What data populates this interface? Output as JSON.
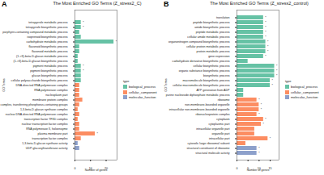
{
  "chart_data": [
    {
      "type": "bar",
      "orientation": "horizontal",
      "panel_label": "A",
      "title": "The Most Enriched GO Terms (Z_stress2_C)",
      "x_label": "Number of genes",
      "y_label": "GO Terms",
      "legend": "right",
      "legend_title": "type",
      "xlim": [
        0,
        27
      ],
      "xticks": [
        0,
        10,
        20
      ],
      "categories": [
        "tetrapyrrole metabolic process",
        "tetrapyrrole biosynthetic process",
        "porphyrin-containing compound metabolic process",
        "isoprenoid biosynthetic process",
        "carbohydrate metabolic process",
        "flavonoid biosynthetic process",
        "flavonoid metabolic process",
        "(1->3)-beta-D-glucan metabolic process",
        "(1->3)-beta-D-glucan biosynthetic process",
        "pigment metabolic process",
        "pigment biosynthetic process",
        "glucan biosynthetic process",
        "cellular polysaccharide biosynthetic process",
        "DNA-directed RNA polymerase complex",
        "RNA polymerase complex",
        "nucleoplasm part",
        "membrane protein complex",
        "transferase complex, transferring phosphorus-containing groups",
        "1,3-beta-D-glucan synthase complex",
        "nuclear DNA-directed RNA polymerase complex",
        "transcription factor TFIID complex",
        "nuclear transcription factor complex",
        "RNA polymerase II, holoenzyme",
        "plasma membrane part",
        "transcription factor complex",
        "1,3-beta-D-glucan synthase activity",
        "UDP-glucosyltransferase activity"
      ],
      "series": [
        {
          "name": "biological_process",
          "color": "#66c2a5",
          "values": [
            4,
            4,
            3,
            4,
            25,
            3,
            3,
            2,
            2,
            4,
            4,
            4,
            4,
            null,
            null,
            null,
            null,
            null,
            null,
            null,
            null,
            null,
            null,
            null,
            null,
            null,
            null
          ]
        },
        {
          "name": "cellular_component",
          "color": "#fc8d62",
          "values": [
            null,
            null,
            null,
            null,
            null,
            null,
            null,
            null,
            null,
            null,
            null,
            null,
            null,
            3,
            3,
            3,
            5,
            3,
            2,
            3,
            2,
            3,
            3,
            13,
            4,
            null,
            null
          ]
        },
        {
          "name": "molecular_function",
          "color": "#8da0cb",
          "values": [
            null,
            null,
            null,
            null,
            null,
            null,
            null,
            null,
            null,
            null,
            null,
            null,
            null,
            null,
            null,
            null,
            null,
            null,
            null,
            null,
            null,
            null,
            null,
            null,
            null,
            2,
            3
          ]
        }
      ],
      "annotations": [
        "*",
        "*",
        null,
        null,
        "*",
        null,
        null,
        null,
        null,
        "*",
        "*",
        null,
        null,
        null,
        null,
        null,
        null,
        null,
        null,
        null,
        null,
        null,
        null,
        "*",
        null,
        null,
        null
      ]
    },
    {
      "type": "bar",
      "orientation": "horizontal",
      "panel_label": "B",
      "title": "The Most Enriched GO Terms (Z_stress2_control)",
      "x_label": "Number of genes",
      "y_label": "GO Terms",
      "legend": "right",
      "legend_title": "type",
      "xlim": [
        0,
        19
      ],
      "xticks": [
        0,
        5,
        10,
        15
      ],
      "categories": [
        "translation",
        "peptide biosynthetic process",
        "amide biosynthetic process",
        "peptide metabolic process",
        "cellular amide metabolic process",
        "organonitrogen compound biosynthetic process",
        "cellular protein metabolic process",
        "protein metabolic process",
        "gene expression",
        "carbohydrate derivative biosynthetic process",
        "cellular biosynthetic process",
        "organic substance biosynthetic process",
        "biosynthetic process",
        "macromolecule biosynthetic process",
        "cellular macromolecule biosynthetic process",
        "ATP generation from ADP",
        "purine nucleoside diphosphate metabolic process",
        "ribosome",
        "non-membrane-bounded organelle",
        "intracellular non-membrane-bounded organelle",
        "ribonucleoprotein complex",
        "cytoplasm",
        "cytoplasmic part",
        "intracellular organelle part",
        "organelle part",
        "intracellular part",
        "cytosolic large ribosomal subunit",
        "structural constituent of ribosome",
        "structural molecule activity"
      ],
      "series": [
        {
          "name": "biological_process",
          "color": "#66c2a5",
          "values": [
            12,
            12,
            12,
            12,
            12,
            13,
            13,
            13,
            12,
            5,
            17,
            17,
            17,
            15,
            15,
            3,
            3,
            null,
            null,
            null,
            null,
            null,
            null,
            null,
            null,
            null,
            null,
            null,
            null
          ]
        },
        {
          "name": "cellular_component",
          "color": "#fc8d62",
          "values": [
            null,
            null,
            null,
            null,
            null,
            null,
            null,
            null,
            null,
            null,
            null,
            null,
            null,
            null,
            null,
            null,
            null,
            9,
            10,
            10,
            9,
            12,
            11,
            8,
            8,
            14,
            4,
            null,
            null
          ]
        },
        {
          "name": "molecular_function",
          "color": "#8da0cb",
          "values": [
            null,
            null,
            null,
            null,
            null,
            null,
            null,
            null,
            null,
            null,
            null,
            null,
            null,
            null,
            null,
            null,
            null,
            null,
            null,
            null,
            null,
            null,
            null,
            null,
            null,
            null,
            null,
            9,
            9
          ]
        }
      ],
      "annotations": [
        "*",
        "*",
        "*",
        "*",
        "*",
        "*",
        "*",
        "*",
        "*",
        null,
        "*",
        "*",
        "*",
        "*",
        "*",
        null,
        null,
        "*",
        "*",
        "*",
        "*",
        "*",
        "*",
        null,
        null,
        "*",
        null,
        "*",
        "*"
      ]
    }
  ]
}
